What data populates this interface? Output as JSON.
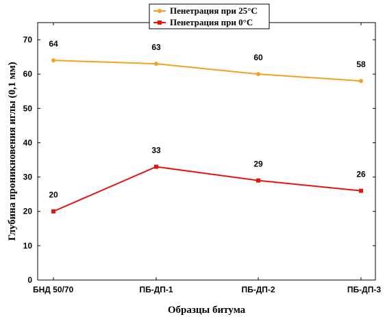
{
  "chart_data": {
    "type": "line",
    "categories": [
      "БНД 50/70",
      "ПБ-ДП-1",
      "ПБ-ДП-2",
      "ПБ-ДП-3"
    ],
    "series": [
      {
        "name": "Пенетрация при 25°C",
        "values": [
          64,
          63,
          60,
          58
        ],
        "color": "#f5a020",
        "marker": "circle"
      },
      {
        "name": "Пенетрация при 0°C",
        "values": [
          20,
          33,
          29,
          26
        ],
        "color": "#e8120c",
        "marker": "square"
      }
    ],
    "xlabel": "Образцы битума",
    "ylabel": "Глубина проникновения иглы (0,1 мм)",
    "ylim": [
      0,
      75
    ],
    "yticks": [
      0,
      10,
      20,
      30,
      40,
      50,
      60,
      70
    ],
    "grid": false,
    "legend_position": "top-center"
  }
}
